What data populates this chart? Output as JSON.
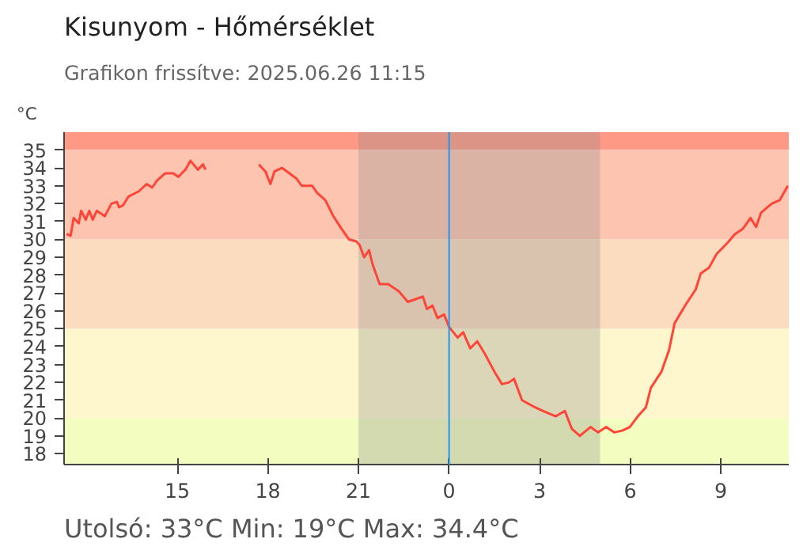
{
  "chart_data": {
    "type": "line",
    "title": "Kisunyom - Hőmérséklet",
    "subtitle": "Grafikon frissítve: 2025.06.26 11:15",
    "ylabel": "°C",
    "annotations": [
      "Utolsó: 33°C  Min: 19°C  Max: 34.4°C"
    ],
    "x": [
      "2025-06-25T11:20",
      "2025-06-25T11:28",
      "2025-06-25T11:34",
      "2025-06-25T11:44",
      "2025-06-25T11:49",
      "2025-06-25T11:58",
      "2025-06-25T12:05",
      "2025-06-25T12:12",
      "2025-06-25T12:20",
      "2025-06-25T12:36",
      "2025-06-25T12:49",
      "2025-06-25T13:00",
      "2025-06-25T13:04",
      "2025-06-25T13:12",
      "2025-06-25T13:23",
      "2025-06-25T13:44",
      "2025-06-25T13:59",
      "2025-06-25T14:10",
      "2025-06-25T14:20",
      "2025-06-25T14:36",
      "2025-06-25T14:52",
      "2025-06-25T15:02",
      "2025-06-25T15:16",
      "2025-06-25T15:26",
      "2025-06-25T15:41",
      "2025-06-25T15:51",
      "2025-06-25T15:56",
      "2025-06-25T16:48",
      "2025-06-25T17:42",
      "2025-06-25T17:55",
      "2025-06-25T18:05",
      "2025-06-25T18:13",
      "2025-06-25T18:28",
      "2025-06-25T18:38",
      "2025-06-25T18:57",
      "2025-06-25T19:07",
      "2025-06-25T19:28",
      "2025-06-25T19:38",
      "2025-06-25T19:54",
      "2025-06-25T20:10",
      "2025-06-25T20:26",
      "2025-06-25T20:41",
      "2025-06-25T20:55",
      "2025-06-25T21:02",
      "2025-06-25T21:11",
      "2025-06-25T21:21",
      "2025-06-25T21:28",
      "2025-06-25T21:42",
      "2025-06-25T21:59",
      "2025-06-25T22:20",
      "2025-06-25T22:38",
      "2025-06-25T23:08",
      "2025-06-25T23:16",
      "2025-06-25T23:27",
      "2025-06-25T23:37",
      "2025-06-25T23:50",
      "2025-06-26T00:00",
      "2025-06-26T00:17",
      "2025-06-26T00:28",
      "2025-06-26T00:42",
      "2025-06-26T00:56",
      "2025-06-26T01:11",
      "2025-06-26T01:32",
      "2025-06-26T01:45",
      "2025-06-26T01:59",
      "2025-06-26T02:09",
      "2025-06-26T02:25",
      "2025-06-26T02:51",
      "2025-06-26T03:07",
      "2025-06-26T03:32",
      "2025-06-26T03:50",
      "2025-06-26T04:04",
      "2025-06-26T04:20",
      "2025-06-26T04:28",
      "2025-06-26T04:41",
      "2025-06-26T04:56",
      "2025-06-26T05:12",
      "2025-06-26T05:28",
      "2025-06-26T05:44",
      "2025-06-26T05:59",
      "2025-06-26T06:15",
      "2025-06-26T06:31",
      "2025-06-26T06:41",
      "2025-06-26T07:02",
      "2025-06-26T07:17",
      "2025-06-26T07:28",
      "2025-06-26T07:49",
      "2025-06-26T08:10",
      "2025-06-26T08:20",
      "2025-06-26T08:36",
      "2025-06-26T08:52",
      "2025-06-26T09:13",
      "2025-06-26T09:28",
      "2025-06-26T09:44",
      "2025-06-26T09:59",
      "2025-06-26T10:10",
      "2025-06-26T10:20",
      "2025-06-26T10:41",
      "2025-06-26T10:57",
      "2025-06-26T11:13"
    ],
    "series": [
      {
        "color": "#ff4438",
        "values": [
          30.3,
          30.2,
          31.2,
          30.9,
          31.6,
          31.1,
          31.6,
          31.1,
          31.6,
          31.3,
          32.0,
          32.1,
          31.8,
          31.9,
          32.4,
          32.7,
          33.1,
          32.9,
          33.3,
          33.7,
          33.7,
          33.5,
          33.9,
          34.4,
          33.9,
          34.2,
          33.9,
          null,
          34.2,
          33.8,
          33.1,
          33.8,
          34.0,
          33.8,
          33.4,
          33.0,
          33.0,
          32.6,
          32.2,
          31.3,
          30.6,
          30.0,
          29.9,
          29.7,
          29.0,
          29.4,
          28.6,
          27.5,
          27.5,
          27.1,
          26.5,
          26.8,
          26.1,
          26.3,
          25.6,
          25.8,
          25.1,
          24.5,
          24.8,
          23.9,
          24.3,
          23.6,
          22.5,
          21.9,
          22.0,
          22.2,
          21.0,
          20.6,
          20.4,
          20.1,
          20.4,
          19.4,
          19.0,
          19.2,
          19.5,
          19.2,
          19.5,
          19.2,
          19.3,
          19.5,
          20.1,
          20.6,
          21.7,
          22.6,
          23.8,
          25.3,
          26.3,
          27.2,
          28.1,
          28.4,
          29.2,
          29.8,
          30.3,
          30.6,
          31.2,
          30.7,
          31.5,
          32.0,
          32.2,
          33.0
        ]
      }
    ],
    "xlim": [
      "2025-06-25T11:15",
      "2025-06-26T11:15"
    ],
    "ylim": [
      17.4,
      36
    ],
    "xticks": [
      {
        "value": "2025-06-25T15:00",
        "label": "15"
      },
      {
        "value": "2025-06-25T18:00",
        "label": "18"
      },
      {
        "value": "2025-06-25T21:00",
        "label": "21"
      },
      {
        "value": "2025-06-26T00:00",
        "label": "0"
      },
      {
        "value": "2025-06-26T03:00",
        "label": "3"
      },
      {
        "value": "2025-06-26T06:00",
        "label": "6"
      },
      {
        "value": "2025-06-26T09:00",
        "label": "9"
      }
    ],
    "yticks": [
      18,
      19,
      20,
      21,
      22,
      23,
      24,
      25,
      26,
      27,
      28,
      29,
      30,
      31,
      32,
      33,
      34,
      35
    ],
    "grid": false,
    "marker": "none",
    "line_style": "solid",
    "bands": [
      {
        "axis": "y",
        "from": 35,
        "to": 36,
        "color": "#fe9985"
      },
      {
        "axis": "y",
        "from": 30,
        "to": 35,
        "color": "#fdc5b0"
      },
      {
        "axis": "y",
        "from": 25,
        "to": 30,
        "color": "#fbdcbf"
      },
      {
        "axis": "y",
        "from": 20,
        "to": 25,
        "color": "#fef6cc"
      },
      {
        "axis": "y",
        "from": 17.4,
        "to": 20,
        "color": "#f3fdbf"
      },
      {
        "axis": "x",
        "from": "2025-06-25T21:00",
        "to": "2025-06-26T05:00",
        "color": "#8c8c8c"
      }
    ],
    "ref_lines": [
      {
        "axis": "x",
        "value": "2025-06-26T00:00",
        "color": "#2196f3",
        "line_style": "solid"
      }
    ]
  }
}
